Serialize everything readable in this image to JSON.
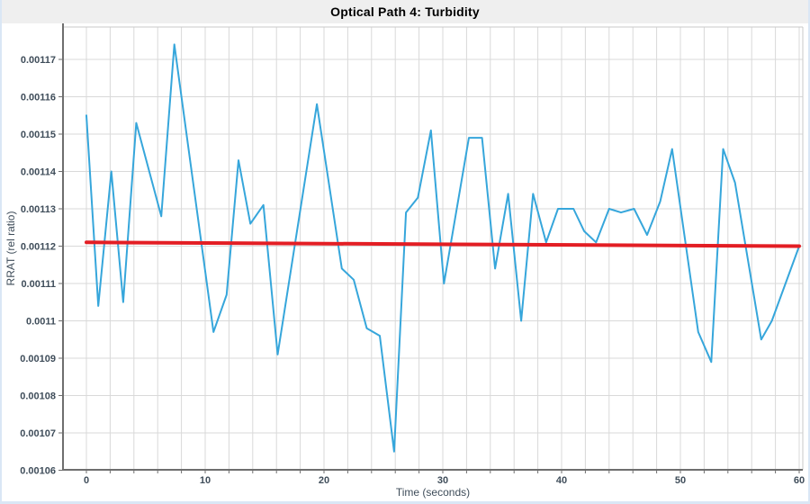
{
  "window": {
    "title_band_bg": "#efefef"
  },
  "chart": {
    "title": "Optical Path 4: Turbidity",
    "xlabel": "Time (seconds)",
    "ylabel": "RRAT (rel ratio)"
  },
  "chart_data": {
    "type": "line",
    "title": "Optical Path 4: Turbidity",
    "xlabel": "Time (seconds)",
    "ylabel": "RRAT (rel ratio)",
    "xlim": [
      -2,
      60.3
    ],
    "ylim": [
      0.00106,
      0.00117
    ],
    "grid": true,
    "x_grid_step_seconds": 2,
    "legend": "none",
    "x_ticks": [
      {
        "v": 0,
        "label": "0"
      },
      {
        "v": 10,
        "label": "10"
      },
      {
        "v": 20,
        "label": "20"
      },
      {
        "v": 30,
        "label": "30"
      },
      {
        "v": 40,
        "label": "40"
      },
      {
        "v": 50,
        "label": "50"
      },
      {
        "v": 60,
        "label": "60"
      }
    ],
    "y_ticks": [
      {
        "v": 0.00117,
        "label": "0.00117"
      },
      {
        "v": 0.00116,
        "label": "0.00116"
      },
      {
        "v": 0.00115,
        "label": "0.00115"
      },
      {
        "v": 0.00114,
        "label": "0.00114"
      },
      {
        "v": 0.00113,
        "label": "0.00113"
      },
      {
        "v": 0.00112,
        "label": "0.00112"
      },
      {
        "v": 0.00111,
        "label": "0.00111"
      },
      {
        "v": 0.0011,
        "label": "0.0011"
      },
      {
        "v": 0.00109,
        "label": "0.00109"
      },
      {
        "v": 0.00108,
        "label": "0.00108"
      },
      {
        "v": 0.00107,
        "label": "0.00107"
      },
      {
        "v": 0.00106,
        "label": "0.00106"
      }
    ],
    "colors": {
      "series_blue": "#36a6db",
      "trend_red": "#e31e24",
      "gridline": "#d9d9d9",
      "axis_spine": "#6e6e6e",
      "plot_border": "#c9c9c9",
      "tick_text": "#3f4d5a"
    },
    "series": [
      {
        "name": "RRAT (rel ratio)",
        "color": "#36a6db",
        "width": 2,
        "points": [
          [
            0,
            0.001155
          ],
          [
            1,
            0.001104
          ],
          [
            2.1,
            0.00114
          ],
          [
            3.1,
            0.001105
          ],
          [
            4.2,
            0.001153
          ],
          [
            6.3,
            0.001128
          ],
          [
            7.4,
            0.001174
          ],
          [
            10.7,
            0.001097
          ],
          [
            11.8,
            0.001107
          ],
          [
            12.8,
            0.001143
          ],
          [
            13.8,
            0.001126
          ],
          [
            14.9,
            0.001131
          ],
          [
            16.1,
            0.001091
          ],
          [
            19.4,
            0.001158
          ],
          [
            21.5,
            0.001114
          ],
          [
            22.5,
            0.001111
          ],
          [
            23.6,
            0.001098
          ],
          [
            24.7,
            0.001096
          ],
          [
            25.9,
            0.001065
          ],
          [
            26.9,
            0.001129
          ],
          [
            27.9,
            0.001133
          ],
          [
            29,
            0.001151
          ],
          [
            30.1,
            0.00111
          ],
          [
            32.2,
            0.001149
          ],
          [
            33.3,
            0.001149
          ],
          [
            34.4,
            0.001114
          ],
          [
            35.5,
            0.001134
          ],
          [
            36.6,
            0.0011
          ],
          [
            37.6,
            0.001134
          ],
          [
            38.7,
            0.001121
          ],
          [
            39.7,
            0.00113
          ],
          [
            41,
            0.00113
          ],
          [
            41.9,
            0.001124
          ],
          [
            42.9,
            0.001121
          ],
          [
            44,
            0.00113
          ],
          [
            45,
            0.001129
          ],
          [
            46.1,
            0.00113
          ],
          [
            47.2,
            0.001123
          ],
          [
            48.3,
            0.001132
          ],
          [
            49.3,
            0.001146
          ],
          [
            51.5,
            0.001097
          ],
          [
            52.6,
            0.001089
          ],
          [
            53.6,
            0.001146
          ],
          [
            54.6,
            0.001137
          ],
          [
            56.8,
            0.001095
          ],
          [
            57.7,
            0.0011
          ],
          [
            60,
            0.00112
          ]
        ]
      },
      {
        "name": "trend line",
        "color": "#e31e24",
        "width": 4,
        "points": [
          [
            0,
            0.001121
          ],
          [
            60,
            0.00112
          ]
        ]
      }
    ]
  }
}
